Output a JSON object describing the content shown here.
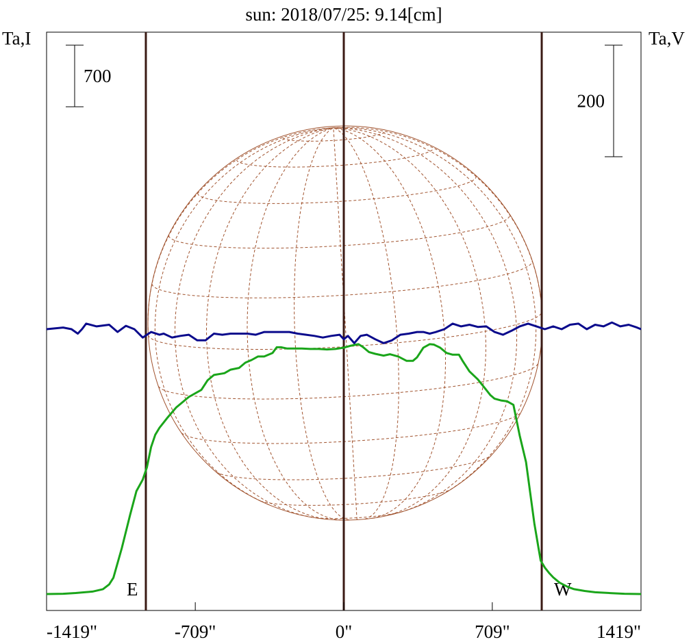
{
  "chart_data": {
    "type": "line",
    "title": "sun: 2018/07/25: 9.14[cm]",
    "left_axis_label": "Ta,I",
    "right_axis_label": "Ta,V",
    "x_unit": "arcsec",
    "xlim": [
      -1419,
      1419
    ],
    "x_tick_labels": [
      "-1419\"",
      "-709\"",
      "0\"",
      "709\"",
      "1419\""
    ],
    "x_tick_values": [
      -1419,
      -709,
      0,
      709,
      1419
    ],
    "scale_bars": [
      {
        "axis": "I",
        "label": "700",
        "value": 700
      },
      {
        "axis": "V",
        "label": "200",
        "value": 200
      }
    ],
    "limb_markers": [
      {
        "label": "E",
        "x": -945
      },
      {
        "label": "W",
        "x": 945
      }
    ],
    "center_marker_x": 0,
    "series": [
      {
        "id": "I",
        "color": "#1aa51a",
        "x": [
          -1419,
          -1340,
          -1280,
          -1200,
          -1150,
          -1120,
          -1100,
          -1060,
          -1020,
          -990,
          -960,
          -940,
          -920,
          -900,
          -880,
          -860,
          -840,
          -800,
          -740,
          -680,
          -650,
          -620,
          -570,
          -540,
          -500,
          -470,
          -440,
          -410,
          -380,
          -340,
          -320,
          -300,
          -270,
          -240,
          -200,
          -160,
          -120,
          -80,
          -40,
          0,
          30,
          70,
          90,
          120,
          150,
          190,
          220,
          260,
          300,
          330,
          350,
          380,
          410,
          430,
          460,
          490,
          520,
          550,
          570,
          600,
          640,
          680,
          700,
          720,
          750,
          780,
          810,
          840,
          870,
          890,
          910,
          930,
          940,
          960,
          980,
          1000,
          1030,
          1070,
          1100,
          1150,
          1200,
          1280,
          1340,
          1419
        ],
        "values": [
          0,
          3,
          12,
          28,
          55,
          110,
          185,
          520,
          900,
          1170,
          1300,
          1440,
          1670,
          1810,
          1890,
          1950,
          2010,
          2120,
          2240,
          2320,
          2430,
          2490,
          2510,
          2550,
          2570,
          2630,
          2660,
          2700,
          2700,
          2740,
          2805,
          2805,
          2790,
          2790,
          2790,
          2785,
          2785,
          2780,
          2785,
          2800,
          2820,
          2840,
          2810,
          2750,
          2730,
          2710,
          2725,
          2700,
          2650,
          2650,
          2690,
          2800,
          2840,
          2835,
          2800,
          2740,
          2720,
          2720,
          2640,
          2530,
          2440,
          2320,
          2260,
          2220,
          2200,
          2190,
          2150,
          1800,
          1500,
          1150,
          800,
          520,
          380,
          300,
          240,
          190,
          130,
          80,
          55,
          35,
          20,
          10,
          3,
          0
        ]
      },
      {
        "id": "V",
        "color": "#0a0a8c",
        "x": [
          -1419,
          -1340,
          -1300,
          -1270,
          -1250,
          -1230,
          -1180,
          -1120,
          -1080,
          -1040,
          -1000,
          -960,
          -920,
          -880,
          -860,
          -820,
          -780,
          -740,
          -700,
          -660,
          -620,
          -580,
          -540,
          -500,
          -460,
          -420,
          -380,
          -340,
          -300,
          -260,
          -220,
          -180,
          -140,
          -100,
          -60,
          -20,
          0,
          20,
          50,
          80,
          110,
          150,
          190,
          230,
          270,
          310,
          350,
          380,
          410,
          440,
          480,
          520,
          560,
          600,
          640,
          680,
          720,
          760,
          800,
          840,
          880,
          920,
          960,
          1000,
          1040,
          1080,
          1120,
          1160,
          1200,
          1240,
          1280,
          1320,
          1360,
          1400,
          1419
        ],
        "values": [
          0,
          3,
          0,
          -8,
          0,
          10,
          5,
          8,
          -5,
          6,
          0,
          -15,
          -5,
          -10,
          -8,
          -15,
          -12,
          -10,
          -20,
          -20,
          -8,
          -10,
          -8,
          -8,
          -8,
          -10,
          -5,
          -5,
          -5,
          -5,
          -8,
          -10,
          -12,
          -15,
          -12,
          -10,
          -18,
          -12,
          -25,
          -12,
          -10,
          -18,
          -25,
          -20,
          -10,
          -8,
          -5,
          -5,
          -8,
          -5,
          0,
          10,
          5,
          8,
          4,
          5,
          -5,
          -10,
          -3,
          5,
          10,
          5,
          0,
          5,
          0,
          8,
          10,
          0,
          8,
          5,
          12,
          5,
          8,
          3,
          0
        ]
      }
    ],
    "grid": false,
    "legend": "none"
  },
  "colors": {
    "frame": "#000000",
    "limb_lines": "#3a1a14",
    "disk": "#a0522d",
    "title": "#1a1a6e"
  }
}
